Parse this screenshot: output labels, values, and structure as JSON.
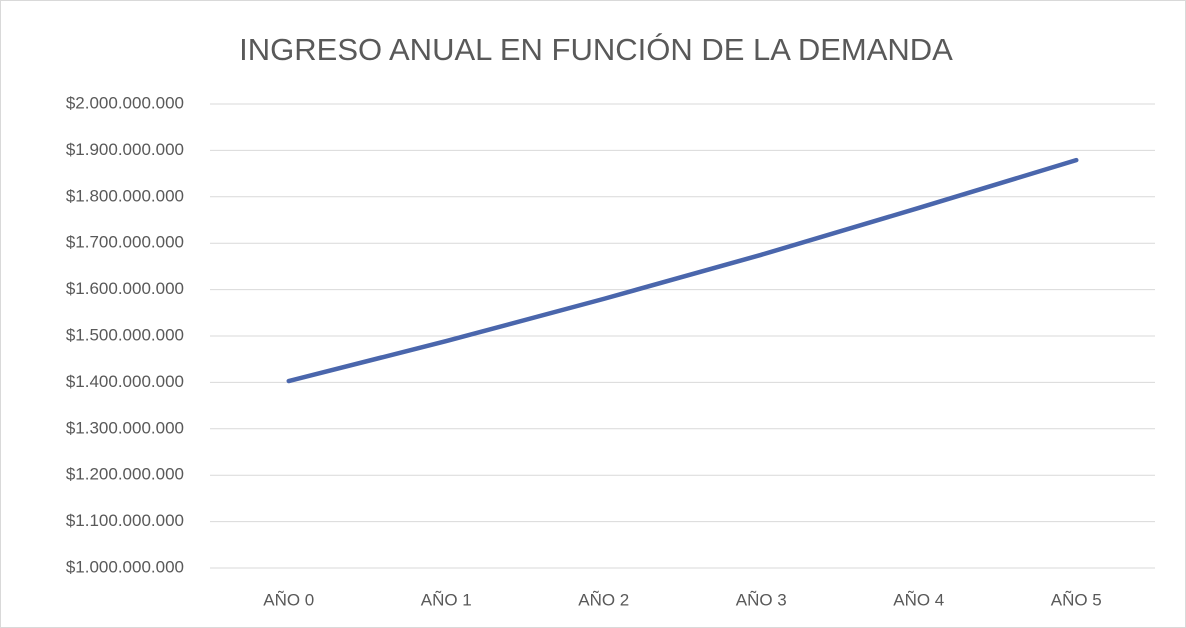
{
  "chart_data": {
    "type": "line",
    "title": "INGRESO ANUAL EN FUNCIÓN DE LA DEMANDA",
    "categories": [
      "AÑO 0",
      "AÑO 1",
      "AÑO 2",
      "AÑO 3",
      "AÑO 4",
      "AÑO 5"
    ],
    "series": [
      {
        "color": "#4a66ac",
        "values": [
          1403000000,
          1489000000,
          1580000000,
          1675000000,
          1776000000,
          1879000000
        ]
      }
    ],
    "ylim": [
      1000000000,
      2000000000
    ],
    "yticks": [
      {
        "value": 1000000000,
        "label": "$1.000.000.000"
      },
      {
        "value": 1100000000,
        "label": "$1.100.000.000"
      },
      {
        "value": 1200000000,
        "label": "$1.200.000.000"
      },
      {
        "value": 1300000000,
        "label": "$1.300.000.000"
      },
      {
        "value": 1400000000,
        "label": "$1.400.000.000"
      },
      {
        "value": 1500000000,
        "label": "$1.500.000.000"
      },
      {
        "value": 1600000000,
        "label": "$1.600.000.000"
      },
      {
        "value": 1700000000,
        "label": "$1.700.000.000"
      },
      {
        "value": 1800000000,
        "label": "$1.800.000.000"
      },
      {
        "value": 1900000000,
        "label": "$1.900.000.000"
      },
      {
        "value": 2000000000,
        "label": "$2.000.000.000"
      }
    ],
    "grid": true
  }
}
